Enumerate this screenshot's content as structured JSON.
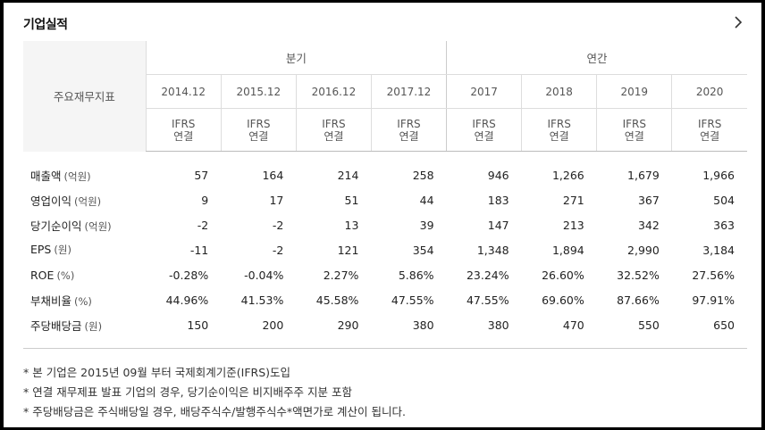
{
  "section": {
    "title": "기업실적"
  },
  "table": {
    "label_header": "주요재무지표",
    "groups": {
      "quarter": "분기",
      "annual": "연간"
    },
    "periods": [
      "2014.12",
      "2015.12",
      "2016.12",
      "2017.12",
      "2017",
      "2018",
      "2019",
      "2020"
    ],
    "basis": [
      [
        "IFRS",
        "연결"
      ],
      [
        "IFRS",
        "연결"
      ],
      [
        "IFRS",
        "연결"
      ],
      [
        "IFRS",
        "연결"
      ],
      [
        "IFRS",
        "연결"
      ],
      [
        "IFRS",
        "연결"
      ],
      [
        "IFRS",
        "연결"
      ],
      [
        "IFRS",
        "연결"
      ]
    ],
    "rows": [
      {
        "label": "매출액",
        "unit": "(억원)",
        "values": [
          "57",
          "164",
          "214",
          "258",
          "946",
          "1,266",
          "1,679",
          "1,966"
        ]
      },
      {
        "label": "영업이익",
        "unit": "(억원)",
        "values": [
          "9",
          "17",
          "51",
          "44",
          "183",
          "271",
          "367",
          "504"
        ]
      },
      {
        "label": "당기순이익",
        "unit": "(억원)",
        "values": [
          "-2",
          "-2",
          "13",
          "39",
          "147",
          "213",
          "342",
          "363"
        ]
      },
      {
        "label": "EPS",
        "unit": "(원)",
        "values": [
          "-11",
          "-2",
          "121",
          "354",
          "1,348",
          "1,894",
          "2,990",
          "3,184"
        ]
      },
      {
        "label": "ROE",
        "unit": "(%)",
        "values": [
          "-0.28%",
          "-0.04%",
          "2.27%",
          "5.86%",
          "23.24%",
          "26.60%",
          "32.52%",
          "27.56%"
        ]
      },
      {
        "label": "부채비율",
        "unit": "(%)",
        "values": [
          "44.96%",
          "41.53%",
          "45.58%",
          "47.55%",
          "47.55%",
          "69.60%",
          "87.66%",
          "97.91%"
        ]
      },
      {
        "label": "주당배당금",
        "unit": "(원)",
        "values": [
          "150",
          "200",
          "290",
          "380",
          "380",
          "470",
          "550",
          "650"
        ]
      }
    ]
  },
  "notes": [
    "* 본 기업은 2015년 09월 부터 국제회계기준(IFRS)도입",
    "* 연결 재무제표 발표 기업의 경우, 당기순이익은 비지배주주 지분 포함",
    "* 주당배당금은 주식배당일 경우, 배당주식수/발행주식수*액면가로 계산이 됩니다."
  ],
  "icons": {
    "more": "chevron-right-icon"
  }
}
